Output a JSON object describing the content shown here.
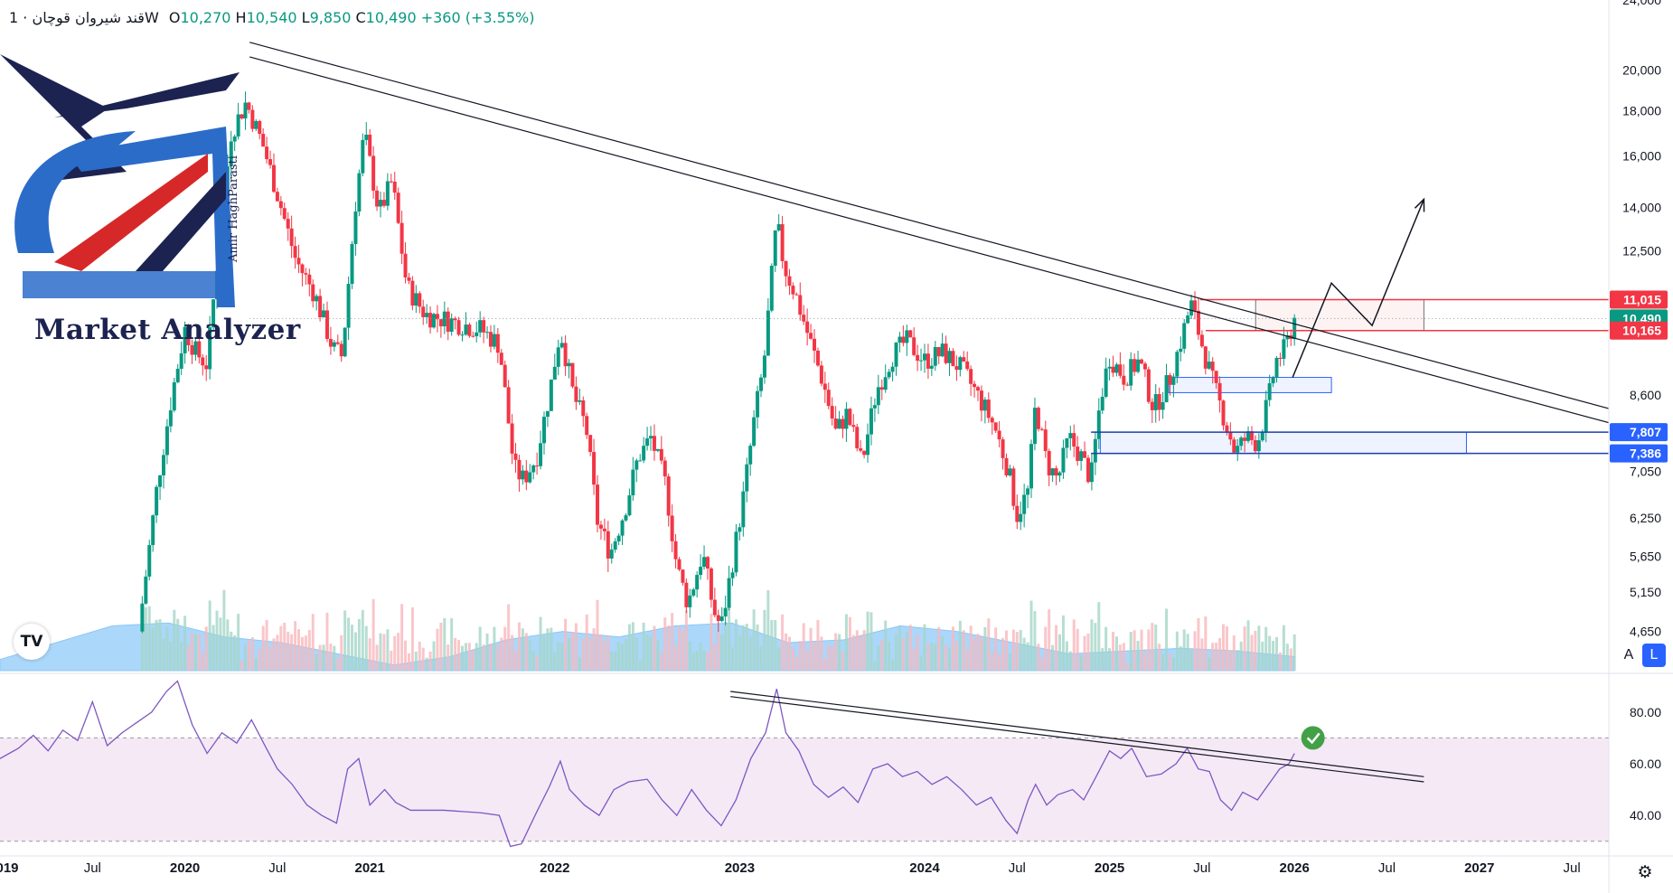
{
  "header": {
    "symbol": "قند شیروان قوچان",
    "interval_sep": "·",
    "interval": "1W",
    "ohlc": [
      {
        "k": "O",
        "v": "10,270"
      },
      {
        "k": "H",
        "v": "10,540"
      },
      {
        "k": "L",
        "v": "9,850"
      },
      {
        "k": "C",
        "v": "10,490"
      }
    ],
    "change": "+360 (+3.55%)"
  },
  "logo": {
    "brand": "Market Analyzer",
    "signature": "Amir HaghParasti"
  },
  "tv_logo": "TV",
  "controls": {
    "auto_label": "A",
    "log_label": "L",
    "settings_icon": "gear-icon"
  },
  "colors": {
    "up": "#089981",
    "down": "#f23645",
    "line": "#131722",
    "rsi": "#7e57c2",
    "rsi_band": "#f3e5f5",
    "vol_ma": "#90caf9",
    "zone_blue": "#2962ff",
    "price_tag_green": "#089981",
    "price_tag_red": "#f23645",
    "support_blue": "#1e40af"
  },
  "chart_data": [
    {
      "type": "candlestick",
      "scale": "log",
      "interval": "1W",
      "ylim": [
        4200,
        24000
      ],
      "y_ticks": [
        "24,000",
        "20,000",
        "18,000",
        "16,000",
        "14,000",
        "12,500",
        "8,600",
        "7,050",
        "6,250",
        "5,650",
        "5,150",
        "4,650"
      ],
      "y_tick_values": [
        24000,
        20000,
        18000,
        16000,
        14000,
        12500,
        8600,
        7050,
        6250,
        5650,
        5150,
        4650
      ],
      "x_labels": [
        "019",
        "Jul",
        "2020",
        "Jul",
        "2021",
        "2022",
        "2023",
        "2024",
        "Jul",
        "2025",
        "Jul",
        "2026",
        "Jul",
        "2027",
        "Jul"
      ],
      "x_label_dates": [
        2019.0,
        2019.5,
        2020.0,
        2020.5,
        2021.0,
        2022.0,
        2023.0,
        2024.0,
        2024.5,
        2025.0,
        2025.5,
        2026.0,
        2026.5,
        2027.0,
        2027.5
      ],
      "xlim": [
        2019.0,
        2027.7
      ],
      "price_path": [
        [
          2019.75,
          4650
        ],
        [
          2019.85,
          6800
        ],
        [
          2019.93,
          8600
        ],
        [
          2020.0,
          10200
        ],
        [
          2020.06,
          9600
        ],
        [
          2020.12,
          9300
        ],
        [
          2020.18,
          12500
        ],
        [
          2020.25,
          17000
        ],
        [
          2020.33,
          18400
        ],
        [
          2020.42,
          16500
        ],
        [
          2020.5,
          14500
        ],
        [
          2020.6,
          12200
        ],
        [
          2020.7,
          11200
        ],
        [
          2020.8,
          9700
        ],
        [
          2020.85,
          9500
        ],
        [
          2020.92,
          14000
        ],
        [
          2020.97,
          17000
        ],
        [
          2021.05,
          13800
        ],
        [
          2021.12,
          15000
        ],
        [
          2021.2,
          11400
        ],
        [
          2021.3,
          10600
        ],
        [
          2021.45,
          10400
        ],
        [
          2021.6,
          10200
        ],
        [
          2021.7,
          9800
        ],
        [
          2021.78,
          7100
        ],
        [
          2021.83,
          6900
        ],
        [
          2021.9,
          7300
        ],
        [
          2021.97,
          8600
        ],
        [
          2022.03,
          10200
        ],
        [
          2022.1,
          8600
        ],
        [
          2022.17,
          7900
        ],
        [
          2022.23,
          6200
        ],
        [
          2022.3,
          5700
        ],
        [
          2022.38,
          6400
        ],
        [
          2022.45,
          7300
        ],
        [
          2022.52,
          7700
        ],
        [
          2022.6,
          6800
        ],
        [
          2022.66,
          5500
        ],
        [
          2022.72,
          5000
        ],
        [
          2022.8,
          5700
        ],
        [
          2022.86,
          4900
        ],
        [
          2022.9,
          4700
        ],
        [
          2022.95,
          5400
        ],
        [
          2023.02,
          6600
        ],
        [
          2023.08,
          8100
        ],
        [
          2023.13,
          9300
        ],
        [
          2023.2,
          13500
        ],
        [
          2023.24,
          12000
        ],
        [
          2023.3,
          11200
        ],
        [
          2023.36,
          10200
        ],
        [
          2023.45,
          8900
        ],
        [
          2023.52,
          7800
        ],
        [
          2023.58,
          8200
        ],
        [
          2023.66,
          7200
        ],
        [
          2023.74,
          8700
        ],
        [
          2023.82,
          9500
        ],
        [
          2023.9,
          9900
        ],
        [
          2024.0,
          9400
        ],
        [
          2024.1,
          9600
        ],
        [
          2024.2,
          9200
        ],
        [
          2024.3,
          8500
        ],
        [
          2024.38,
          7900
        ],
        [
          2024.45,
          7100
        ],
        [
          2024.5,
          6300
        ],
        [
          2024.56,
          6700
        ],
        [
          2024.6,
          8400
        ],
        [
          2024.66,
          7200
        ],
        [
          2024.72,
          6900
        ],
        [
          2024.78,
          7700
        ],
        [
          2024.85,
          7300
        ],
        [
          2024.9,
          6900
        ],
        [
          2024.95,
          8500
        ],
        [
          2025.0,
          9500
        ],
        [
          2025.08,
          9000
        ],
        [
          2025.16,
          9400
        ],
        [
          2025.24,
          8300
        ],
        [
          2025.32,
          8900
        ],
        [
          2025.38,
          9800
        ],
        [
          2025.44,
          10900
        ],
        [
          2025.5,
          9800
        ],
        [
          2025.55,
          9000
        ],
        [
          2025.62,
          8100
        ],
        [
          2025.68,
          7400
        ],
        [
          2025.74,
          7700
        ],
        [
          2025.8,
          7600
        ],
        [
          2025.86,
          8500
        ],
        [
          2025.9,
          9400
        ],
        [
          2025.95,
          9700
        ],
        [
          2026.0,
          10490
        ]
      ],
      "last_price": 10490,
      "price_tags": [
        {
          "label": "11,015",
          "value": 11015,
          "color": "#f23645"
        },
        {
          "label": "10,490",
          "value": 10490,
          "color": "#089981"
        },
        {
          "label": "10,165",
          "value": 10165,
          "color": "#f23645"
        },
        {
          "label": "7,807",
          "value": 7807,
          "color": "#2962ff"
        },
        {
          "label": "7,386",
          "value": 7386,
          "color": "#2962ff"
        }
      ],
      "trendlines": [
        {
          "from": [
            2020.35,
            21500
          ],
          "to": [
            2027.7,
            8300
          ]
        },
        {
          "from": [
            2020.35,
            20700
          ],
          "to": [
            2027.7,
            8000
          ]
        }
      ],
      "zones": [
        {
          "x": [
            2025.79,
            2026.7
          ],
          "y": [
            10165,
            11015
          ],
          "style": "resistance"
        },
        {
          "x": [
            2025.32,
            2026.2
          ],
          "y": [
            8650,
            9000
          ],
          "style": "blue"
        },
        {
          "x": [
            2024.95,
            2026.93
          ],
          "y": [
            7386,
            7807
          ],
          "style": "blue"
        }
      ],
      "hlines": [
        {
          "x": [
            2025.49,
            2027.7
          ],
          "value": 11015,
          "color": "#f23645"
        },
        {
          "x": [
            2025.52,
            2027.7
          ],
          "value": 10165,
          "color": "#f23645"
        },
        {
          "x": [
            2024.9,
            2027.7
          ],
          "value": 7807,
          "color": "#1e40af"
        },
        {
          "x": [
            2024.9,
            2027.7
          ],
          "value": 7386,
          "color": "#1e40af"
        }
      ],
      "projection_path": [
        [
          2025.99,
          9000
        ],
        [
          2026.2,
          11500
        ],
        [
          2026.42,
          10300
        ],
        [
          2026.7,
          14300
        ]
      ],
      "volume_ma_profile": [
        0.2,
        0.5,
        0.8,
        0.85,
        0.6,
        0.5,
        0.3,
        0.1,
        0.25,
        0.55,
        0.7,
        0.6,
        0.8,
        0.85,
        0.5,
        0.55,
        0.8,
        0.7,
        0.5,
        0.3,
        0.35,
        0.4,
        0.35,
        0.25
      ]
    },
    {
      "type": "line",
      "indicator": "RSI",
      "ylim": [
        25,
        95
      ],
      "y_ticks": [
        "80.00",
        "60.00",
        "40.00"
      ],
      "y_tick_values": [
        80,
        60,
        40
      ],
      "band": [
        30,
        70
      ],
      "points": [
        [
          2019.0,
          62
        ],
        [
          2019.1,
          66
        ],
        [
          2019.18,
          71
        ],
        [
          2019.26,
          65
        ],
        [
          2019.34,
          73
        ],
        [
          2019.42,
          69
        ],
        [
          2019.5,
          84
        ],
        [
          2019.58,
          67
        ],
        [
          2019.66,
          72
        ],
        [
          2019.74,
          76
        ],
        [
          2019.82,
          80
        ],
        [
          2019.9,
          88
        ],
        [
          2019.96,
          92
        ],
        [
          2020.04,
          75
        ],
        [
          2020.12,
          64
        ],
        [
          2020.2,
          72
        ],
        [
          2020.28,
          68
        ],
        [
          2020.36,
          77
        ],
        [
          2020.44,
          66
        ],
        [
          2020.5,
          58
        ],
        [
          2020.58,
          52
        ],
        [
          2020.66,
          44
        ],
        [
          2020.74,
          40
        ],
        [
          2020.82,
          37
        ],
        [
          2020.88,
          58
        ],
        [
          2020.94,
          62
        ],
        [
          2021.0,
          44
        ],
        [
          2021.08,
          50
        ],
        [
          2021.14,
          45
        ],
        [
          2021.22,
          42
        ],
        [
          2021.4,
          42
        ],
        [
          2021.6,
          41
        ],
        [
          2021.7,
          40
        ],
        [
          2021.76,
          28
        ],
        [
          2021.82,
          29
        ],
        [
          2021.9,
          41
        ],
        [
          2021.97,
          51
        ],
        [
          2022.03,
          61
        ],
        [
          2022.08,
          50
        ],
        [
          2022.16,
          44
        ],
        [
          2022.24,
          40
        ],
        [
          2022.32,
          50
        ],
        [
          2022.4,
          53
        ],
        [
          2022.5,
          54
        ],
        [
          2022.58,
          46
        ],
        [
          2022.66,
          40
        ],
        [
          2022.74,
          50
        ],
        [
          2022.82,
          42
        ],
        [
          2022.9,
          36
        ],
        [
          2022.98,
          46
        ],
        [
          2023.06,
          62
        ],
        [
          2023.14,
          72
        ],
        [
          2023.2,
          89
        ],
        [
          2023.25,
          72
        ],
        [
          2023.32,
          65
        ],
        [
          2023.4,
          52
        ],
        [
          2023.48,
          47
        ],
        [
          2023.56,
          51
        ],
        [
          2023.64,
          45
        ],
        [
          2023.72,
          58
        ],
        [
          2023.8,
          60
        ],
        [
          2023.88,
          55
        ],
        [
          2023.96,
          57
        ],
        [
          2024.04,
          52
        ],
        [
          2024.12,
          55
        ],
        [
          2024.2,
          50
        ],
        [
          2024.28,
          44
        ],
        [
          2024.36,
          47
        ],
        [
          2024.44,
          38
        ],
        [
          2024.5,
          33
        ],
        [
          2024.56,
          46
        ],
        [
          2024.6,
          52
        ],
        [
          2024.66,
          44
        ],
        [
          2024.72,
          48
        ],
        [
          2024.8,
          50
        ],
        [
          2024.86,
          46
        ],
        [
          2024.92,
          54
        ],
        [
          2025.0,
          65
        ],
        [
          2025.06,
          62
        ],
        [
          2025.12,
          66
        ],
        [
          2025.2,
          55
        ],
        [
          2025.28,
          56
        ],
        [
          2025.36,
          60
        ],
        [
          2025.42,
          66
        ],
        [
          2025.48,
          58
        ],
        [
          2025.54,
          57
        ],
        [
          2025.6,
          46
        ],
        [
          2025.66,
          42
        ],
        [
          2025.72,
          49
        ],
        [
          2025.8,
          46
        ],
        [
          2025.86,
          52
        ],
        [
          2025.92,
          58
        ],
        [
          2025.97,
          60
        ],
        [
          2026.0,
          64
        ]
      ],
      "trendlines": [
        {
          "from": [
            2022.95,
            88
          ],
          "to": [
            2026.7,
            55
          ]
        },
        {
          "from": [
            2022.95,
            86
          ],
          "to": [
            2026.7,
            53
          ]
        }
      ],
      "check_mark": [
        2026.1,
        70
      ]
    }
  ]
}
